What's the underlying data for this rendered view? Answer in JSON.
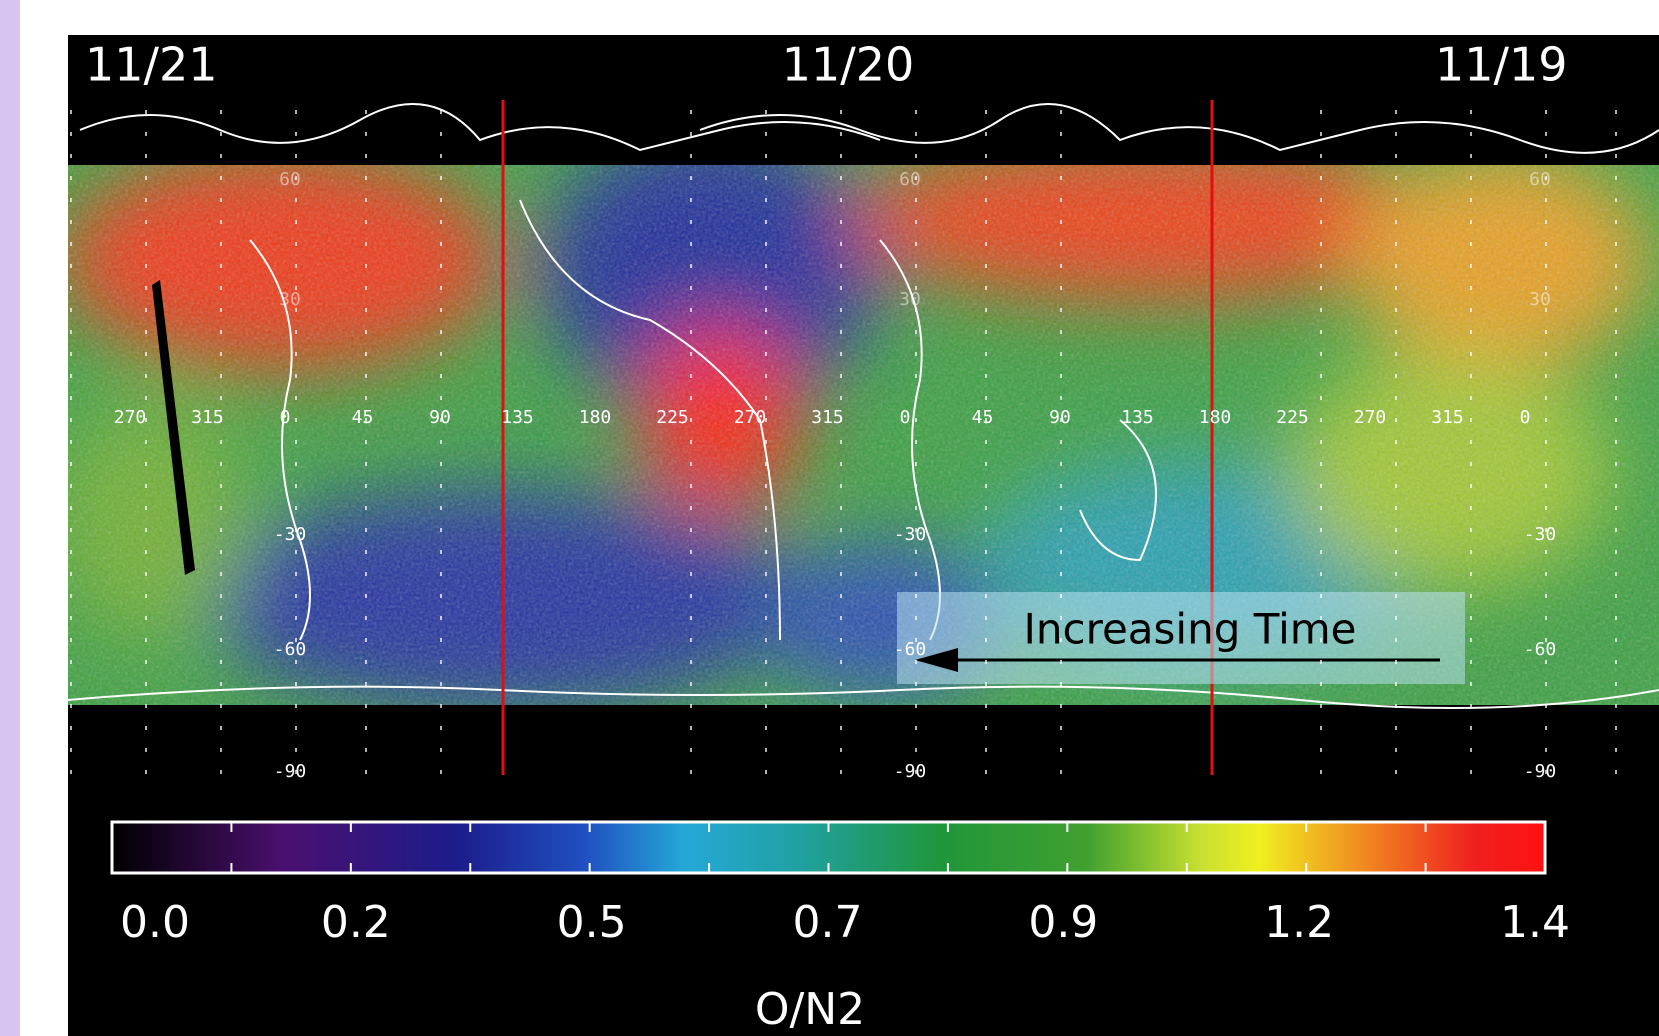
{
  "dates": [
    "11/21",
    "11/20",
    "11/19"
  ],
  "longitudes": [
    "270",
    "315",
    "0",
    "45",
    "90",
    "135",
    "180",
    "225",
    "270",
    "315",
    "0",
    "45",
    "90",
    "135",
    "180",
    "225",
    "270",
    "315",
    "0"
  ],
  "latitudes": [
    "60",
    "30",
    "-30",
    "-60",
    "-90"
  ],
  "annotation": "Increasing Time",
  "colorbar": {
    "ticks": [
      "0.0",
      "0.2",
      "0.5",
      "0.7",
      "0.9",
      "1.2",
      "1.4"
    ],
    "label": "O/N2"
  }
}
